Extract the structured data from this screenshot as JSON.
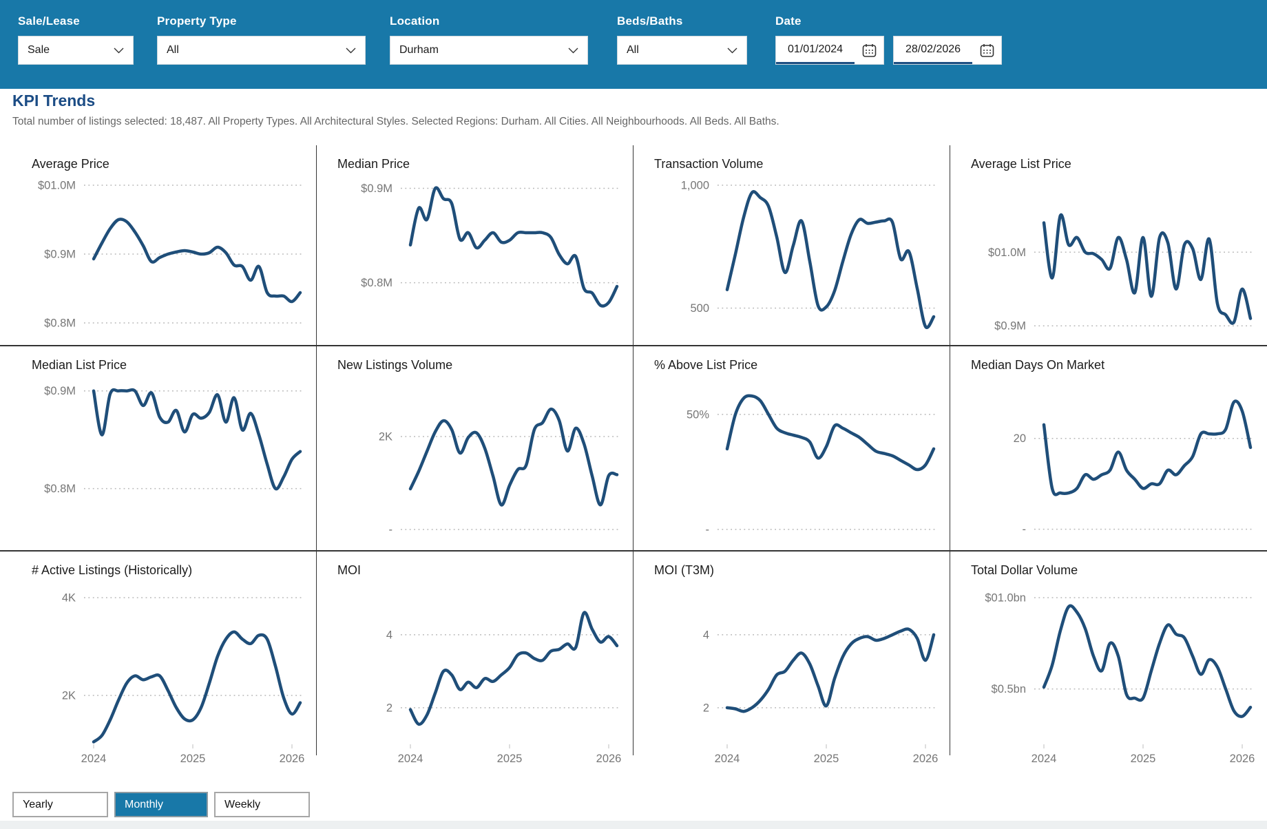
{
  "filters": {
    "sale_lease": {
      "label": "Sale/Lease",
      "value": "Sale",
      "icon": "chevron-down"
    },
    "property_type": {
      "label": "Property Type",
      "value": "All",
      "icon": "chevron-down"
    },
    "location": {
      "label": "Location",
      "value": "Durham",
      "icon": "chevron-down"
    },
    "beds_baths": {
      "label": "Beds/Baths",
      "value": "All",
      "icon": "chevron-down"
    },
    "date": {
      "label": "Date",
      "start": "01/01/2024",
      "end": "28/02/2026",
      "icon": "calendar"
    }
  },
  "page": {
    "title": "KPI Trends",
    "subtitle": "Total number of listings selected: 18,487. All Property Types. All Architectural Styles. Selected Regions: Durham. All Cities. All Neighbourhoods. All Beds. All Baths."
  },
  "period_buttons": [
    {
      "label": "Yearly",
      "selected": false
    },
    {
      "label": "Monthly",
      "selected": true
    },
    {
      "label": "Weekly",
      "selected": false
    }
  ],
  "colors": {
    "topbar_background": "#1878a8",
    "trend_line": "#1f4e79",
    "heading_text": "#1b4c85",
    "selected_button_background": "#1878a8",
    "gridline": "#b5b5b5",
    "tick_text": "#767676",
    "divider": "#343434"
  },
  "chart_data": [
    {
      "type": "line",
      "title": "Average Price",
      "frequency": "monthly",
      "x_start": "2024-01",
      "x_end": "2026-02",
      "x_axis_labels": [
        "2024",
        "2025",
        "2026"
      ],
      "show_x_axis": false,
      "yticks": [
        {
          "label": "$01.0M",
          "value": 1.0
        },
        {
          "label": "$0.9M",
          "value": 0.9
        },
        {
          "label": "$0.8M",
          "value": 0.8
        }
      ],
      "ymin": 0.768,
      "ymax": 1.016,
      "values": [
        0.893,
        0.916,
        0.937,
        0.95,
        0.947,
        0.932,
        0.912,
        0.889,
        0.895,
        0.9,
        0.903,
        0.905,
        0.903,
        0.9,
        0.902,
        0.91,
        0.902,
        0.884,
        0.882,
        0.862,
        0.882,
        0.844,
        0.839,
        0.839,
        0.831,
        0.844
      ]
    },
    {
      "type": "line",
      "title": "Median Price",
      "frequency": "monthly",
      "x_start": "2024-01",
      "x_end": "2026-02",
      "x_axis_labels": [
        "2024",
        "2025",
        "2026"
      ],
      "show_x_axis": false,
      "yticks": [
        {
          "label": "$0.9M",
          "value": 0.9
        },
        {
          "label": "$0.8M",
          "value": 0.8
        }
      ],
      "ymin": 0.734,
      "ymax": 0.915,
      "values": [
        0.84,
        0.879,
        0.867,
        0.9,
        0.889,
        0.884,
        0.846,
        0.853,
        0.837,
        0.845,
        0.853,
        0.843,
        0.845,
        0.853,
        0.853,
        0.853,
        0.853,
        0.848,
        0.83,
        0.82,
        0.828,
        0.794,
        0.789,
        0.776,
        0.779,
        0.796
      ]
    },
    {
      "type": "line",
      "title": "Transaction Volume",
      "frequency": "monthly",
      "x_start": "2024-01",
      "x_end": "2026-02",
      "x_axis_labels": [
        "2024",
        "2025",
        "2026"
      ],
      "show_x_axis": false,
      "yticks": [
        {
          "label": "1,000",
          "value": 1000
        },
        {
          "label": "500",
          "value": 500
        }
      ],
      "ymin": 350,
      "ymax": 1045,
      "values": [
        575,
        720,
        870,
        970,
        950,
        915,
        790,
        645,
        755,
        855,
        690,
        510,
        505,
        570,
        690,
        800,
        860,
        845,
        850,
        855,
        850,
        700,
        730,
        580,
        425,
        465
      ]
    },
    {
      "type": "line",
      "title": "Average List Price",
      "frequency": "monthly",
      "x_start": "2024-01",
      "x_end": "2026-02",
      "x_axis_labels": [
        "2024",
        "2025",
        "2026"
      ],
      "show_x_axis": false,
      "yticks": [
        {
          "label": "$01.0M",
          "value": 1.0
        },
        {
          "label": "$0.9M",
          "value": 0.9
        }
      ],
      "ymin": 0.874,
      "ymax": 1.106,
      "values": [
        1.04,
        0.965,
        1.05,
        1.01,
        1.02,
        1.0,
        0.998,
        0.99,
        0.978,
        1.02,
        0.99,
        0.945,
        1.02,
        0.94,
        1.02,
        1.013,
        0.95,
        1.01,
        1.005,
        0.963,
        1.018,
        0.93,
        0.915,
        0.905,
        0.95,
        0.91
      ]
    },
    {
      "type": "line",
      "title": "Median List Price",
      "frequency": "monthly",
      "x_start": "2024-01",
      "x_end": "2026-02",
      "x_axis_labels": [
        "2024",
        "2025",
        "2026"
      ],
      "show_x_axis": false,
      "yticks": [
        {
          "label": "$0.9M",
          "value": 0.9
        },
        {
          "label": "$0.8M",
          "value": 0.8
        }
      ],
      "ymin": 0.737,
      "ymax": 0.916,
      "values": [
        0.9,
        0.855,
        0.897,
        0.9,
        0.9,
        0.9,
        0.885,
        0.898,
        0.873,
        0.868,
        0.88,
        0.858,
        0.876,
        0.872,
        0.878,
        0.896,
        0.868,
        0.893,
        0.86,
        0.877,
        0.855,
        0.825,
        0.8,
        0.812,
        0.83,
        0.838
      ]
    },
    {
      "type": "line",
      "title": "New Listings Volume",
      "frequency": "monthly",
      "x_start": "2024-01",
      "x_end": "2026-02",
      "x_axis_labels": [
        "2024",
        "2025",
        "2026"
      ],
      "show_x_axis": false,
      "yticks": [
        {
          "label": "2K",
          "value": 2000
        },
        {
          "label": "-",
          "value": 0
        }
      ],
      "ymin": -444,
      "ymax": 3319,
      "values": [
        875,
        1250,
        1680,
        2100,
        2340,
        2150,
        1645,
        1980,
        2080,
        1750,
        1150,
        530,
        950,
        1290,
        1380,
        2150,
        2300,
        2590,
        2350,
        1690,
        2180,
        1850,
        1150,
        530,
        1160,
        1180
      ]
    },
    {
      "type": "line",
      "title": "% Above List Price",
      "frequency": "monthly",
      "x_start": "2024-01",
      "x_end": "2026-02",
      "x_axis_labels": [
        "2024",
        "2025",
        "2026"
      ],
      "show_x_axis": false,
      "yticks": [
        {
          "label": "50%",
          "value": 50
        },
        {
          "label": "-",
          "value": 0
        }
      ],
      "ymin": -9,
      "ymax": 67,
      "values": [
        35,
        50,
        57,
        58,
        56,
        50,
        44,
        42,
        41,
        40,
        38,
        31,
        36,
        45,
        44,
        42,
        40,
        37,
        34,
        33,
        32,
        30,
        28,
        26,
        28,
        35
      ]
    },
    {
      "type": "line",
      "title": "Median Days On Market",
      "frequency": "monthly",
      "x_start": "2024-01",
      "x_end": "2026-02",
      "x_axis_labels": [
        "2024",
        "2025",
        "2026"
      ],
      "show_x_axis": false,
      "yticks": [
        {
          "label": "20",
          "value": 20
        },
        {
          "label": "-",
          "value": 0
        }
      ],
      "ymin": -4.6,
      "ymax": 33.9,
      "values": [
        23,
        9,
        8,
        8,
        9,
        12,
        11,
        12,
        13,
        17,
        13,
        11,
        9,
        10,
        10,
        13,
        12,
        14,
        16,
        21,
        21,
        21,
        22,
        28,
        26,
        18
      ]
    },
    {
      "type": "line",
      "title": "# Active Listings (Historically)",
      "frequency": "monthly",
      "x_start": "2024-01",
      "x_end": "2026-02",
      "x_axis_labels": [
        "2024",
        "2025",
        "2026"
      ],
      "show_x_axis": true,
      "yticks": [
        {
          "label": "4K",
          "value": 4000
        },
        {
          "label": "2K",
          "value": 2000
        }
      ],
      "ymin": 338,
      "ymax": 4352,
      "values": [
        1050,
        1180,
        1500,
        1900,
        2250,
        2400,
        2320,
        2380,
        2400,
        2100,
        1750,
        1520,
        1500,
        1750,
        2250,
        2800,
        3150,
        3300,
        3150,
        3060,
        3230,
        3150,
        2600,
        1950,
        1620,
        1850
      ]
    },
    {
      "type": "line",
      "title": "MOI",
      "frequency": "monthly",
      "x_start": "2024-01",
      "x_end": "2026-02",
      "x_axis_labels": [
        "2024",
        "2025",
        "2026"
      ],
      "show_x_axis": true,
      "yticks": [
        {
          "label": "4",
          "value": 4
        },
        {
          "label": "2",
          "value": 2
        }
      ],
      "ymin": 0.11,
      "ymax": 5.49,
      "values": [
        1.95,
        1.55,
        1.8,
        2.4,
        3.0,
        2.9,
        2.5,
        2.7,
        2.55,
        2.8,
        2.72,
        2.9,
        3.1,
        3.45,
        3.5,
        3.35,
        3.3,
        3.55,
        3.6,
        3.75,
        3.65,
        4.6,
        4.15,
        3.8,
        3.95,
        3.7
      ]
    },
    {
      "type": "line",
      "title": "MOI (T3M)",
      "frequency": "monthly",
      "x_start": "2024-01",
      "x_end": "2026-02",
      "x_axis_labels": [
        "2024",
        "2025",
        "2026"
      ],
      "show_x_axis": true,
      "yticks": [
        {
          "label": "4",
          "value": 4
        },
        {
          "label": "2",
          "value": 2
        }
      ],
      "ymin": 0.11,
      "ymax": 5.49,
      "values": [
        2.0,
        1.97,
        1.9,
        2.0,
        2.2,
        2.5,
        2.9,
        3.0,
        3.3,
        3.5,
        3.2,
        2.6,
        2.05,
        2.8,
        3.4,
        3.75,
        3.9,
        3.95,
        3.85,
        3.9,
        4.0,
        4.1,
        4.15,
        3.9,
        3.3,
        4.0
      ]
    },
    {
      "type": "line",
      "title": "Total Dollar Volume",
      "frequency": "monthly",
      "x_start": "2024-01",
      "x_end": "2026-02",
      "x_axis_labels": [
        "2024",
        "2025",
        "2026"
      ],
      "show_x_axis": true,
      "yticks": [
        {
          "label": "$01.0bn",
          "value": 1.0
        },
        {
          "label": "$0.5bn",
          "value": 0.5
        }
      ],
      "ymin": 0.02,
      "ymax": 1.094,
      "values": [
        0.51,
        0.63,
        0.82,
        0.95,
        0.92,
        0.83,
        0.68,
        0.6,
        0.75,
        0.68,
        0.47,
        0.45,
        0.45,
        0.6,
        0.75,
        0.85,
        0.8,
        0.78,
        0.68,
        0.58,
        0.66,
        0.62,
        0.5,
        0.38,
        0.35,
        0.4
      ]
    }
  ]
}
